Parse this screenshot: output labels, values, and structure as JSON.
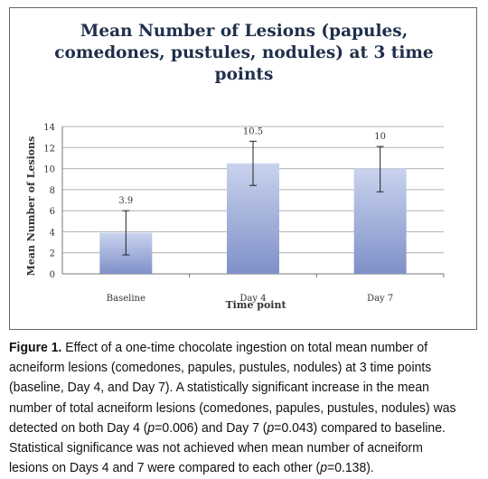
{
  "chart_data": {
    "type": "bar",
    "title_lines": [
      "Mean Number of Lesions (papules,",
      "comedones, pustules, nodules) at 3 time",
      "points"
    ],
    "xlabel": "Time point",
    "ylabel": "Mean Number of Lesions",
    "categories": [
      "Baseline",
      "Day 4",
      "Day 7"
    ],
    "values": [
      3.9,
      10.5,
      10
    ],
    "value_labels": [
      "3.9",
      "10.5",
      "10"
    ],
    "error_low": [
      1.8,
      8.4,
      7.8
    ],
    "error_high": [
      6.0,
      12.6,
      12.1
    ],
    "ylim": [
      0,
      14
    ],
    "yticks": [
      "0",
      "2",
      "4",
      "6",
      "8",
      "10",
      "12",
      "14"
    ],
    "grid": true,
    "bar_color_top": "#c9d3ee",
    "bar_color_bottom": "#7f90c8"
  },
  "caption": {
    "label": "Figure 1.",
    "text": " Effect of a one-time chocolate ingestion on total mean number of acneiform lesions (comedones, papules, pustules, nodules) at 3 time points (baseline, Day 4, and Day 7). A statistically significant increase in the mean number of total acneiform lesions (comedones, papules, pustules, nodules) was detected on both Day 4 (",
    "p1": "p",
    "t1": "=0.006) and Day 7 (",
    "p2": "p",
    "t2": "=0.043) compared to baseline. Statistical significance was not achieved when mean number of acneiform lesions on Days 4 and 7 were compared to each other (",
    "p3": "p",
    "t3": "=0.138)."
  }
}
